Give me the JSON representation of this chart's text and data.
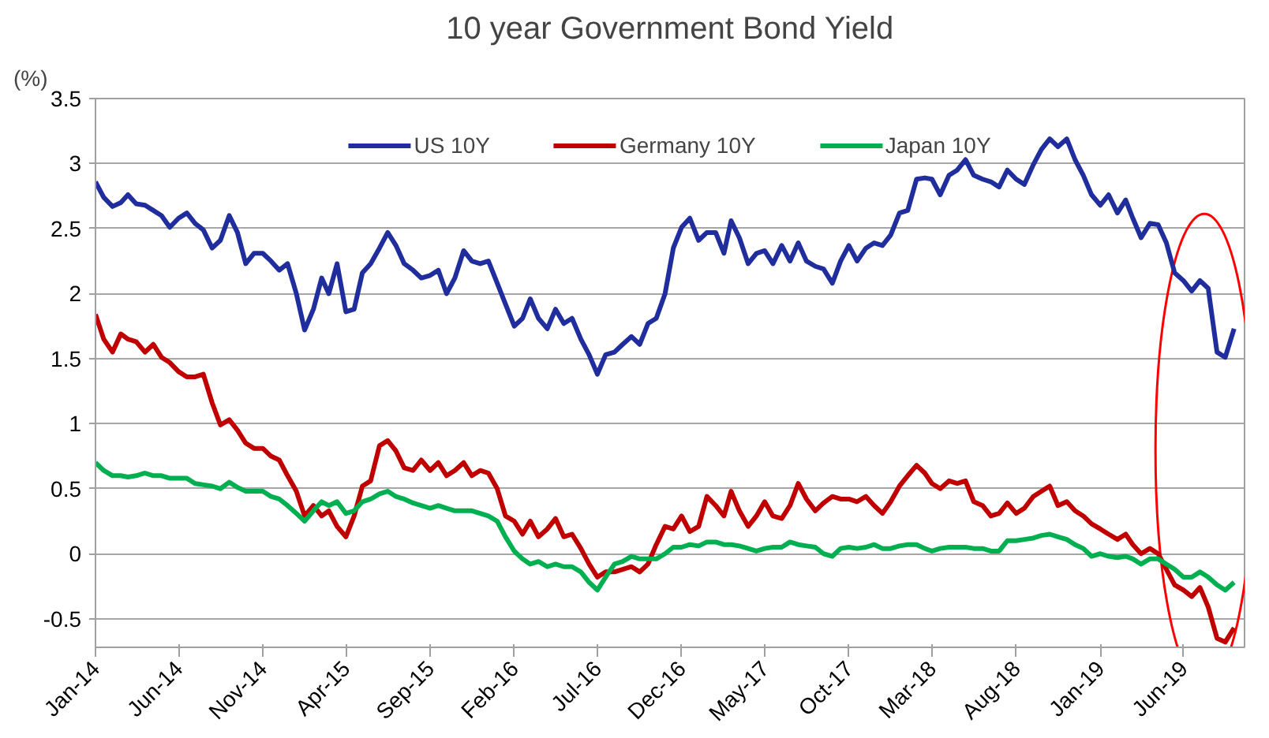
{
  "chart_data": {
    "type": "line",
    "title": "10 year Government Bond Yield",
    "ylabel": "(%)",
    "x": [
      "2014-01-01",
      "2014-01-16",
      "2014-02-01",
      "2014-02-16",
      "2014-03-01",
      "2014-03-16",
      "2014-04-01",
      "2014-04-16",
      "2014-05-01",
      "2014-05-16",
      "2014-06-01",
      "2014-06-16",
      "2014-07-01",
      "2014-07-16",
      "2014-08-01",
      "2014-08-16",
      "2014-09-01",
      "2014-09-16",
      "2014-10-01",
      "2014-10-16",
      "2014-11-01",
      "2014-11-16",
      "2014-12-01",
      "2014-12-16",
      "2015-01-01",
      "2015-01-16",
      "2015-02-01",
      "2015-02-16",
      "2015-03-01",
      "2015-03-16",
      "2015-04-01",
      "2015-04-16",
      "2015-05-01",
      "2015-05-16",
      "2015-06-01",
      "2015-06-16",
      "2015-07-01",
      "2015-07-16",
      "2015-08-01",
      "2015-08-16",
      "2015-09-01",
      "2015-09-16",
      "2015-10-01",
      "2015-10-16",
      "2015-11-01",
      "2015-11-16",
      "2015-12-01",
      "2015-12-16",
      "2016-01-01",
      "2016-01-16",
      "2016-02-01",
      "2016-02-16",
      "2016-03-01",
      "2016-03-16",
      "2016-04-01",
      "2016-04-16",
      "2016-05-01",
      "2016-05-16",
      "2016-06-01",
      "2016-06-16",
      "2016-07-01",
      "2016-07-16",
      "2016-08-01",
      "2016-08-16",
      "2016-09-01",
      "2016-09-16",
      "2016-10-01",
      "2016-10-16",
      "2016-11-01",
      "2016-11-16",
      "2016-12-01",
      "2016-12-16",
      "2017-01-01",
      "2017-01-16",
      "2017-02-01",
      "2017-02-16",
      "2017-03-01",
      "2017-03-16",
      "2017-04-01",
      "2017-04-16",
      "2017-05-01",
      "2017-05-16",
      "2017-06-01",
      "2017-06-16",
      "2017-07-01",
      "2017-07-16",
      "2017-08-01",
      "2017-08-16",
      "2017-09-01",
      "2017-09-16",
      "2017-10-01",
      "2017-10-16",
      "2017-11-01",
      "2017-11-16",
      "2017-12-01",
      "2017-12-16",
      "2018-01-01",
      "2018-01-16",
      "2018-02-01",
      "2018-02-16",
      "2018-03-01",
      "2018-03-16",
      "2018-04-01",
      "2018-04-16",
      "2018-05-01",
      "2018-05-16",
      "2018-06-01",
      "2018-06-16",
      "2018-07-01",
      "2018-07-16",
      "2018-08-01",
      "2018-08-16",
      "2018-09-01",
      "2018-09-16",
      "2018-10-01",
      "2018-10-16",
      "2018-11-01",
      "2018-11-16",
      "2018-12-01",
      "2018-12-16",
      "2019-01-01",
      "2019-01-16",
      "2019-02-01",
      "2019-02-16",
      "2019-03-01",
      "2019-03-16",
      "2019-04-01",
      "2019-04-16",
      "2019-05-01",
      "2019-05-16",
      "2019-06-01",
      "2019-06-16",
      "2019-07-01",
      "2019-07-16",
      "2019-08-01",
      "2019-08-16",
      "2019-09-01"
    ],
    "series": [
      {
        "name": "US 10Y",
        "color": "#1f2e9c",
        "values": [
          2.86,
          2.74,
          2.67,
          2.7,
          2.76,
          2.69,
          2.68,
          2.64,
          2.6,
          2.51,
          2.58,
          2.62,
          2.54,
          2.49,
          2.35,
          2.41,
          2.6,
          2.47,
          2.23,
          2.31,
          2.31,
          2.25,
          2.18,
          2.23,
          2.0,
          1.72,
          1.88,
          2.12,
          2.0,
          2.23,
          1.86,
          1.88,
          2.16,
          2.23,
          2.35,
          2.47,
          2.37,
          2.23,
          2.18,
          2.12,
          2.14,
          2.18,
          2.0,
          2.12,
          2.33,
          2.25,
          2.23,
          2.25,
          2.08,
          1.92,
          1.75,
          1.81,
          1.96,
          1.81,
          1.73,
          1.88,
          1.77,
          1.81,
          1.65,
          1.53,
          1.38,
          1.53,
          1.55,
          1.61,
          1.67,
          1.61,
          1.77,
          1.81,
          2.0,
          2.35,
          2.51,
          2.58,
          2.41,
          2.47,
          2.47,
          2.31,
          2.56,
          2.43,
          2.23,
          2.31,
          2.33,
          2.23,
          2.37,
          2.25,
          2.39,
          2.25,
          2.21,
          2.19,
          2.08,
          2.25,
          2.37,
          2.25,
          2.35,
          2.39,
          2.37,
          2.45,
          2.62,
          2.64,
          2.88,
          2.89,
          2.88,
          2.76,
          2.91,
          2.95,
          3.03,
          2.91,
          2.88,
          2.86,
          2.82,
          2.95,
          2.88,
          2.84,
          2.99,
          3.11,
          3.19,
          3.13,
          3.19,
          3.03,
          2.91,
          2.76,
          2.68,
          2.76,
          2.62,
          2.72,
          2.58,
          2.43,
          2.54,
          2.53,
          2.39,
          2.16,
          2.1,
          2.02,
          2.1,
          2.04,
          1.55,
          1.51,
          1.73
        ]
      },
      {
        "name": "Germany 10Y",
        "color": "#c00000",
        "values": [
          1.84,
          1.65,
          1.55,
          1.69,
          1.65,
          1.63,
          1.55,
          1.61,
          1.51,
          1.47,
          1.4,
          1.36,
          1.36,
          1.38,
          1.16,
          0.99,
          1.03,
          0.95,
          0.85,
          0.81,
          0.81,
          0.75,
          0.72,
          0.6,
          0.48,
          0.29,
          0.37,
          0.29,
          0.33,
          0.21,
          0.13,
          0.29,
          0.52,
          0.56,
          0.83,
          0.87,
          0.79,
          0.66,
          0.64,
          0.72,
          0.64,
          0.7,
          0.6,
          0.64,
          0.7,
          0.6,
          0.64,
          0.62,
          0.5,
          0.29,
          0.25,
          0.15,
          0.25,
          0.13,
          0.19,
          0.27,
          0.13,
          0.15,
          0.04,
          -0.08,
          -0.18,
          -0.14,
          -0.14,
          -0.12,
          -0.1,
          -0.14,
          -0.08,
          0.07,
          0.21,
          0.19,
          0.29,
          0.17,
          0.21,
          0.44,
          0.37,
          0.29,
          0.48,
          0.33,
          0.21,
          0.29,
          0.4,
          0.29,
          0.27,
          0.37,
          0.54,
          0.42,
          0.33,
          0.39,
          0.44,
          0.42,
          0.42,
          0.4,
          0.44,
          0.37,
          0.31,
          0.4,
          0.52,
          0.6,
          0.68,
          0.62,
          0.54,
          0.5,
          0.56,
          0.54,
          0.56,
          0.4,
          0.37,
          0.29,
          0.31,
          0.39,
          0.31,
          0.35,
          0.44,
          0.48,
          0.52,
          0.37,
          0.4,
          0.33,
          0.29,
          0.23,
          0.19,
          0.15,
          0.11,
          0.15,
          0.07,
          0.0,
          0.04,
          0.0,
          -0.12,
          -0.24,
          -0.28,
          -0.33,
          -0.26,
          -0.41,
          -0.65,
          -0.68,
          -0.57
        ]
      },
      {
        "name": "Japan 10Y",
        "color": "#00b050",
        "values": [
          0.7,
          0.64,
          0.6,
          0.6,
          0.59,
          0.6,
          0.62,
          0.6,
          0.6,
          0.58,
          0.58,
          0.58,
          0.54,
          0.53,
          0.52,
          0.5,
          0.55,
          0.51,
          0.48,
          0.48,
          0.48,
          0.44,
          0.42,
          0.37,
          0.31,
          0.25,
          0.33,
          0.4,
          0.37,
          0.4,
          0.31,
          0.33,
          0.4,
          0.42,
          0.46,
          0.48,
          0.44,
          0.42,
          0.39,
          0.37,
          0.35,
          0.37,
          0.35,
          0.33,
          0.33,
          0.33,
          0.31,
          0.29,
          0.25,
          0.13,
          0.02,
          -0.04,
          -0.08,
          -0.06,
          -0.1,
          -0.08,
          -0.1,
          -0.1,
          -0.14,
          -0.22,
          -0.28,
          -0.18,
          -0.08,
          -0.06,
          -0.02,
          -0.04,
          -0.04,
          -0.04,
          0.0,
          0.05,
          0.05,
          0.07,
          0.06,
          0.09,
          0.09,
          0.07,
          0.07,
          0.06,
          0.04,
          0.02,
          0.04,
          0.05,
          0.05,
          0.09,
          0.07,
          0.06,
          0.05,
          0.0,
          -0.02,
          0.04,
          0.05,
          0.04,
          0.05,
          0.07,
          0.04,
          0.04,
          0.06,
          0.07,
          0.07,
          0.04,
          0.02,
          0.04,
          0.05,
          0.05,
          0.05,
          0.04,
          0.04,
          0.02,
          0.02,
          0.1,
          0.1,
          0.11,
          0.12,
          0.14,
          0.15,
          0.13,
          0.11,
          0.07,
          0.04,
          -0.02,
          0.0,
          -0.02,
          -0.03,
          -0.02,
          -0.04,
          -0.08,
          -0.04,
          -0.04,
          -0.08,
          -0.12,
          -0.18,
          -0.18,
          -0.14,
          -0.18,
          -0.24,
          -0.28,
          -0.22
        ]
      }
    ],
    "xlim": [
      "2014-01-01",
      "2019-09-20"
    ],
    "xticks": [
      {
        "value": "2014-01-01",
        "label": "Jan-14"
      },
      {
        "value": "2014-06-01",
        "label": "Jun-14"
      },
      {
        "value": "2014-11-01",
        "label": "Nov-14"
      },
      {
        "value": "2015-04-01",
        "label": "Apr-15"
      },
      {
        "value": "2015-09-01",
        "label": "Sep-15"
      },
      {
        "value": "2016-02-01",
        "label": "Feb-16"
      },
      {
        "value": "2016-07-01",
        "label": "Jul-16"
      },
      {
        "value": "2016-12-01",
        "label": "Dec-16"
      },
      {
        "value": "2017-05-01",
        "label": "May-17"
      },
      {
        "value": "2017-10-01",
        "label": "Oct-17"
      },
      {
        "value": "2018-03-01",
        "label": "Mar-18"
      },
      {
        "value": "2018-08-01",
        "label": "Aug-18"
      },
      {
        "value": "2019-01-01",
        "label": "Jan-19"
      },
      {
        "value": "2019-06-01",
        "label": "Jun-19"
      }
    ],
    "ylim": [
      -0.72,
      3.5
    ],
    "yticks": [
      -0.5,
      0,
      0.5,
      1,
      1.5,
      2,
      2.5,
      3,
      3.5
    ],
    "grid": "y",
    "legend": "top",
    "marker": "none",
    "line_style": "solid"
  }
}
